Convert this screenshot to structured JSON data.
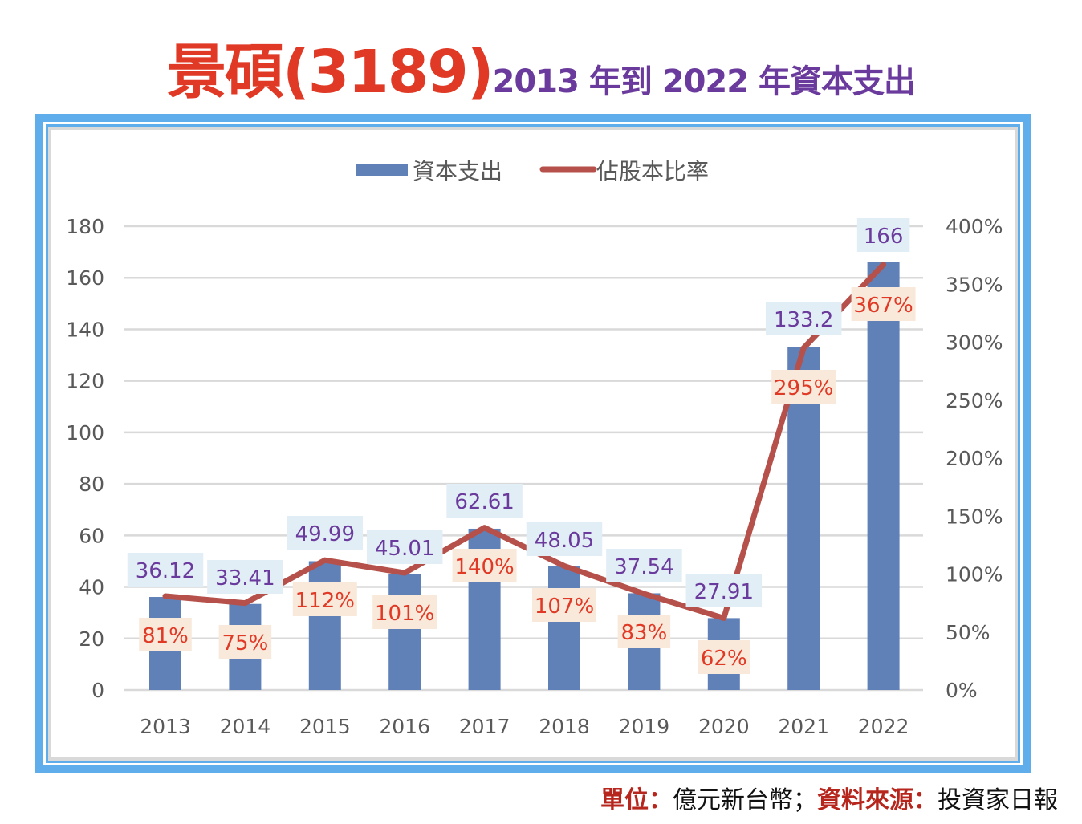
{
  "header": {
    "title_main": "景碩(3189)",
    "title_sub": "2013 年到 2022 年資本支出"
  },
  "footer": {
    "unit_label": "單位：",
    "unit_value": "億元新台幣；",
    "source_label": "資料來源：",
    "source_value": "投資家日報"
  },
  "colors": {
    "title_main": "#e03a26",
    "title_sub": "#6a3a9c",
    "frame": "#5fadea",
    "bar": "#6080b8",
    "line": "#b5514a",
    "bar_label_text": "#6a3a9c",
    "bar_label_bg": "#e2eef5",
    "line_label_text": "#e03a26",
    "line_label_bg": "#f9e9da",
    "grid": "#d9d9d9",
    "axis_text": "#595959"
  },
  "chart_data": {
    "type": "bar",
    "title": "",
    "categories": [
      "2013",
      "2014",
      "2015",
      "2016",
      "2017",
      "2018",
      "2019",
      "2020",
      "2021",
      "2022"
    ],
    "series": [
      {
        "name": "資本支出",
        "type": "bar",
        "axis": "left",
        "values": [
          36.12,
          33.41,
          49.99,
          45.01,
          62.61,
          48.05,
          37.54,
          27.91,
          133.2,
          166
        ],
        "labels": [
          "36.12",
          "33.41",
          "49.99",
          "45.01",
          "62.61",
          "48.05",
          "37.54",
          "27.91",
          "133.2",
          "166"
        ]
      },
      {
        "name": "佔股本比率",
        "type": "line",
        "axis": "right",
        "values": [
          81,
          75,
          112,
          101,
          140,
          107,
          83,
          62,
          295,
          367
        ],
        "labels": [
          "81%",
          "75%",
          "112%",
          "101%",
          "140%",
          "107%",
          "83%",
          "62%",
          "295%",
          "367%"
        ]
      }
    ],
    "y_left": {
      "min": 0,
      "max": 180,
      "ticks": [
        "0",
        "20",
        "40",
        "60",
        "80",
        "100",
        "120",
        "140",
        "160",
        "180"
      ]
    },
    "y_right": {
      "min": 0,
      "max": 400,
      "ticks": [
        "0%",
        "50%",
        "100%",
        "150%",
        "200%",
        "250%",
        "300%",
        "350%",
        "400%"
      ]
    },
    "xlabel": "",
    "ylabel": "",
    "grid": true,
    "legend": {
      "position": "top",
      "entries": [
        "資本支出",
        "佔股本比率"
      ]
    }
  }
}
